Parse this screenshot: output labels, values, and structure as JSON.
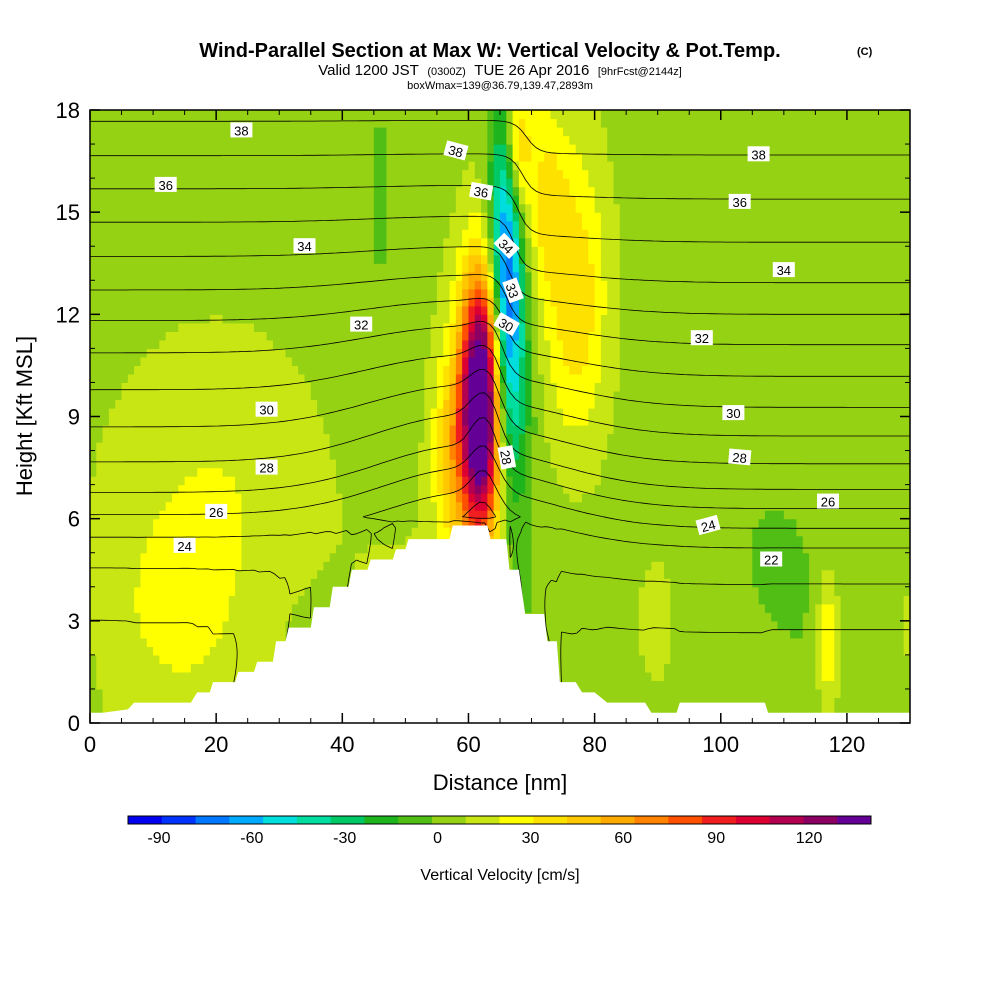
{
  "title": {
    "main": "Wind-Parallel Section at Max W: Vertical Velocity & Pot.Temp.",
    "copyright": "(C)",
    "valid_prefix": "Valid 1200 JST",
    "valid_utc": "(0300Z)",
    "valid_date": "TUE 26 Apr 2016",
    "forecast": "[9hrFcst@2144z]",
    "box_info": "boxWmax=139@36.79,139.47,2893m"
  },
  "chart_data": {
    "type": "heatmap",
    "xlabel": "Distance [nm]",
    "ylabel": "Height [Kft MSL]",
    "xlim": [
      0,
      130
    ],
    "ylim": [
      0,
      18
    ],
    "x_ticks": [
      "0",
      "20",
      "40",
      "60",
      "80",
      "100",
      "120"
    ],
    "y_ticks": [
      "0",
      "3",
      "6",
      "9",
      "12",
      "15",
      "18"
    ],
    "x_tick_values": [
      0,
      20,
      40,
      60,
      80,
      100,
      120
    ],
    "y_tick_values": [
      0,
      3,
      6,
      9,
      12,
      15,
      18
    ],
    "colorbar": {
      "label": "Vertical Velocity [cm/s]",
      "ticks": [
        "-90",
        "-60",
        "-30",
        "0",
        "30",
        "60",
        "90",
        "120"
      ],
      "tick_values": [
        -90,
        -60,
        -30,
        0,
        30,
        60,
        90,
        120
      ],
      "min": -100,
      "max": 140,
      "colors": [
        "#0000f0",
        "#0033ff",
        "#0077ff",
        "#00aaff",
        "#00dddd",
        "#00dda0",
        "#00c864",
        "#1eb41e",
        "#50be14",
        "#96d214",
        "#c8e614",
        "#ffff00",
        "#ffe100",
        "#ffc800",
        "#ffaa00",
        "#ff8200",
        "#ff5000",
        "#f01e1e",
        "#dc0032",
        "#b40050",
        "#8c0064",
        "#640096"
      ]
    },
    "terrain_profile": [
      [
        0,
        0.3
      ],
      [
        2,
        0.3
      ],
      [
        6,
        0.4
      ],
      [
        7,
        0.6
      ],
      [
        10,
        0.6
      ],
      [
        16,
        0.6
      ],
      [
        17,
        0.9
      ],
      [
        19,
        0.9
      ],
      [
        19.5,
        1.2
      ],
      [
        23,
        1.2
      ],
      [
        23.5,
        1.5
      ],
      [
        26,
        1.5
      ],
      [
        26.5,
        1.8
      ],
      [
        29,
        1.8
      ],
      [
        29.5,
        2.4
      ],
      [
        31,
        2.4
      ],
      [
        31.5,
        2.8
      ],
      [
        35,
        2.8
      ],
      [
        35.5,
        3.4
      ],
      [
        38,
        3.4
      ],
      [
        38.5,
        4.0
      ],
      [
        41,
        4.0
      ],
      [
        41.5,
        4.5
      ],
      [
        44,
        4.5
      ],
      [
        44.5,
        4.8
      ],
      [
        48,
        4.8
      ],
      [
        48.5,
        5.1
      ],
      [
        50,
        5.1
      ],
      [
        50.5,
        5.4
      ],
      [
        57,
        5.4
      ],
      [
        57.5,
        5.8
      ],
      [
        63,
        5.8
      ],
      [
        63.5,
        5.4
      ],
      [
        66,
        5.4
      ],
      [
        66.5,
        4.5
      ],
      [
        68,
        4.5
      ],
      [
        69,
        3.2
      ],
      [
        72,
        3.2
      ],
      [
        72.5,
        2.4
      ],
      [
        74,
        2.4
      ],
      [
        74.5,
        1.2
      ],
      [
        77,
        1.2
      ],
      [
        78,
        0.9
      ],
      [
        80,
        0.9
      ],
      [
        82,
        0.6
      ],
      [
        88,
        0.6
      ],
      [
        89,
        0.3
      ],
      [
        93,
        0.3
      ],
      [
        93.5,
        0.6
      ],
      [
        107,
        0.6
      ],
      [
        107.5,
        0.3
      ],
      [
        130,
        0.3
      ]
    ],
    "blobs": [
      {
        "x": 62,
        "y": 9.5,
        "sx": 2.2,
        "sy": 2.5,
        "w": 139
      },
      {
        "x": 61.5,
        "y": 8.0,
        "sx": 3.5,
        "sy": 3.5,
        "w": 40
      },
      {
        "x": 66,
        "y": 13.0,
        "sx": 1.8,
        "sy": 4.0,
        "w": -90
      },
      {
        "x": 67.5,
        "y": 17.0,
        "sx": 1.5,
        "sy": 1.5,
        "w": 55
      },
      {
        "x": 77,
        "y": 12.5,
        "sx": 3.5,
        "sy": 3.0,
        "w": 35
      },
      {
        "x": 72,
        "y": 15.5,
        "sx": 2.5,
        "sy": 2.0,
        "w": 25
      },
      {
        "x": 57,
        "y": 8.0,
        "sx": 2.0,
        "sy": 1.8,
        "w": 25
      },
      {
        "x": 68,
        "y": 9.5,
        "sx": 2.0,
        "sy": 3.0,
        "w": -20
      },
      {
        "x": 117,
        "y": 2.5,
        "sx": 1.2,
        "sy": 1.4,
        "w": 30
      },
      {
        "x": 46,
        "y": 15.5,
        "sx": 1.5,
        "sy": 2.5,
        "w": -10
      },
      {
        "x": 94,
        "y": 3.0,
        "sx": 1.5,
        "sy": 1.5,
        "w": -5
      },
      {
        "x": 108,
        "y": 5.0,
        "sx": 3.0,
        "sy": 1.0,
        "w": -8
      },
      {
        "x": 20,
        "y": 5.0,
        "sx": 12,
        "sy": 4.0,
        "w": 18
      },
      {
        "x": 120,
        "y": 13.0,
        "sx": 10,
        "sy": 6.0,
        "w": -5
      }
    ],
    "theta_base": {
      "heights": [
        0.3,
        5.0,
        7.0,
        9.0,
        11.0,
        13.0,
        15.0,
        17.0,
        19.0
      ],
      "thetas": [
        20.8,
        24.5,
        27.8,
        30.0,
        32.0,
        34.2,
        36.0,
        37.8,
        39.5
      ]
    },
    "theta_levels": [
      18,
      19,
      20,
      21,
      22,
      23,
      24,
      25,
      26,
      27,
      28,
      29,
      30,
      31,
      32,
      33,
      34,
      35,
      36,
      37,
      38,
      39,
      40
    ],
    "contour_labels": [
      {
        "text": "38",
        "x": 24,
        "y": 17.4,
        "rot": 0
      },
      {
        "text": "38",
        "x": 58,
        "y": 16.8,
        "rot": 15
      },
      {
        "text": "38",
        "x": 106,
        "y": 16.7,
        "rot": 0
      },
      {
        "text": "36",
        "x": 12,
        "y": 15.8,
        "rot": 0
      },
      {
        "text": "36",
        "x": 62,
        "y": 15.6,
        "rot": 10
      },
      {
        "text": "36",
        "x": 103,
        "y": 15.3,
        "rot": 0
      },
      {
        "text": "34",
        "x": 34,
        "y": 14.0,
        "rot": 0
      },
      {
        "text": "34",
        "x": 66,
        "y": 14.0,
        "rot": 45
      },
      {
        "text": "34",
        "x": 110,
        "y": 13.3,
        "rot": 0
      },
      {
        "text": "33",
        "x": 67,
        "y": 12.7,
        "rot": 70
      },
      {
        "text": "32",
        "x": 43,
        "y": 11.7,
        "rot": 0
      },
      {
        "text": "32",
        "x": 97,
        "y": 11.3,
        "rot": 0
      },
      {
        "text": "30",
        "x": 66,
        "y": 11.7,
        "rot": 30
      },
      {
        "text": "30",
        "x": 28,
        "y": 9.2,
        "rot": 0
      },
      {
        "text": "30",
        "x": 102,
        "y": 9.1,
        "rot": 0
      },
      {
        "text": "28",
        "x": 66,
        "y": 7.8,
        "rot": 80
      },
      {
        "text": "28",
        "x": 28,
        "y": 7.5,
        "rot": 0
      },
      {
        "text": "28",
        "x": 103,
        "y": 7.8,
        "rot": 5
      },
      {
        "text": "26",
        "x": 20,
        "y": 6.2,
        "rot": 0
      },
      {
        "text": "26",
        "x": 117,
        "y": 6.5,
        "rot": 0
      },
      {
        "text": "24",
        "x": 15,
        "y": 5.2,
        "rot": 0
      },
      {
        "text": "24",
        "x": 98,
        "y": 5.8,
        "rot": -15
      },
      {
        "text": "22",
        "x": 108,
        "y": 4.8,
        "rot": 0
      }
    ]
  }
}
